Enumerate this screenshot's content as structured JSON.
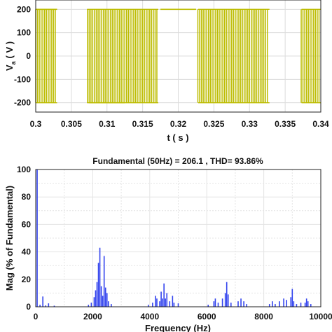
{
  "chart_data": [
    {
      "type": "line",
      "ylabel_main": "V",
      "ylabel_sub": "a",
      "ylabel_unit": "( V )",
      "xlabel": "t ( s )",
      "xlim": [
        0.3,
        0.34
      ],
      "ylim": [
        -240,
        240
      ],
      "xticks": [
        "0.3",
        "0.305",
        "0.31",
        "0.315",
        "0.32",
        "0.325",
        "0.33",
        "0.335",
        "0.34"
      ],
      "yticks": [
        "200",
        "100",
        "0",
        "-100",
        "-200"
      ],
      "grid": true,
      "series": [
        {
          "color": "#bcbc00",
          "pulse_high": 200,
          "pulse_low": -200,
          "positive_half_cycles": [
            [
              0.3,
              0.303
            ],
            [
              0.3175,
              0.3225
            ]
          ],
          "negative_half_cycles": [
            [
              0.3075,
              0.3125
            ]
          ],
          "pulse_intervals": [
            [
              0.3,
              0.303
            ],
            [
              0.3072,
              0.3172
            ],
            [
              0.3228,
              0.3328
            ],
            [
              0.3373,
              0.34
            ]
          ]
        }
      ]
    },
    {
      "type": "bar",
      "title": "Fundamental (50Hz) = 206.1 , THD= 93.86%",
      "xlabel": "Frequency (Hz)",
      "ylabel": "Mag (% of Fundamental)",
      "xlim": [
        0,
        10000
      ],
      "ylim": [
        0,
        100
      ],
      "xticks": [
        "0",
        "2000",
        "4000",
        "6000",
        "8000",
        "10000"
      ],
      "yticks": [
        "100",
        "80",
        "60",
        "40",
        "20",
        "0"
      ],
      "grid": true,
      "color": "#3344ee",
      "bars": [
        [
          50,
          100
        ],
        [
          150,
          1.5
        ],
        [
          250,
          7.5
        ],
        [
          350,
          1
        ],
        [
          450,
          2.5
        ],
        [
          650,
          0.8
        ],
        [
          1850,
          1.5
        ],
        [
          1950,
          3
        ],
        [
          2050,
          7
        ],
        [
          2100,
          12
        ],
        [
          2150,
          18
        ],
        [
          2200,
          32
        ],
        [
          2250,
          43
        ],
        [
          2300,
          15
        ],
        [
          2350,
          8
        ],
        [
          2400,
          37
        ],
        [
          2450,
          14
        ],
        [
          2500,
          10
        ],
        [
          2550,
          4
        ],
        [
          2650,
          2
        ],
        [
          3950,
          1.5
        ],
        [
          4100,
          3
        ],
        [
          4200,
          8
        ],
        [
          4250,
          6
        ],
        [
          4350,
          4
        ],
        [
          4400,
          11
        ],
        [
          4450,
          6
        ],
        [
          4500,
          17
        ],
        [
          4550,
          6
        ],
        [
          4600,
          10
        ],
        [
          4700,
          4
        ],
        [
          4800,
          8
        ],
        [
          4850,
          3
        ],
        [
          5000,
          2.5
        ],
        [
          6050,
          1.5
        ],
        [
          6250,
          4
        ],
        [
          6300,
          6
        ],
        [
          6400,
          3
        ],
        [
          6550,
          6
        ],
        [
          6650,
          10
        ],
        [
          6700,
          18
        ],
        [
          6750,
          9
        ],
        [
          6850,
          3
        ],
        [
          7100,
          4
        ],
        [
          7200,
          6
        ],
        [
          7300,
          4
        ],
        [
          7400,
          2
        ],
        [
          8200,
          2
        ],
        [
          8300,
          4
        ],
        [
          8400,
          2
        ],
        [
          8550,
          4
        ],
        [
          8700,
          6
        ],
        [
          8800,
          5
        ],
        [
          8950,
          7
        ],
        [
          9000,
          13
        ],
        [
          9050,
          4
        ],
        [
          9150,
          2
        ],
        [
          9300,
          3
        ],
        [
          9450,
          3
        ],
        [
          9500,
          6
        ],
        [
          9550,
          4
        ],
        [
          9650,
          2
        ]
      ]
    }
  ]
}
